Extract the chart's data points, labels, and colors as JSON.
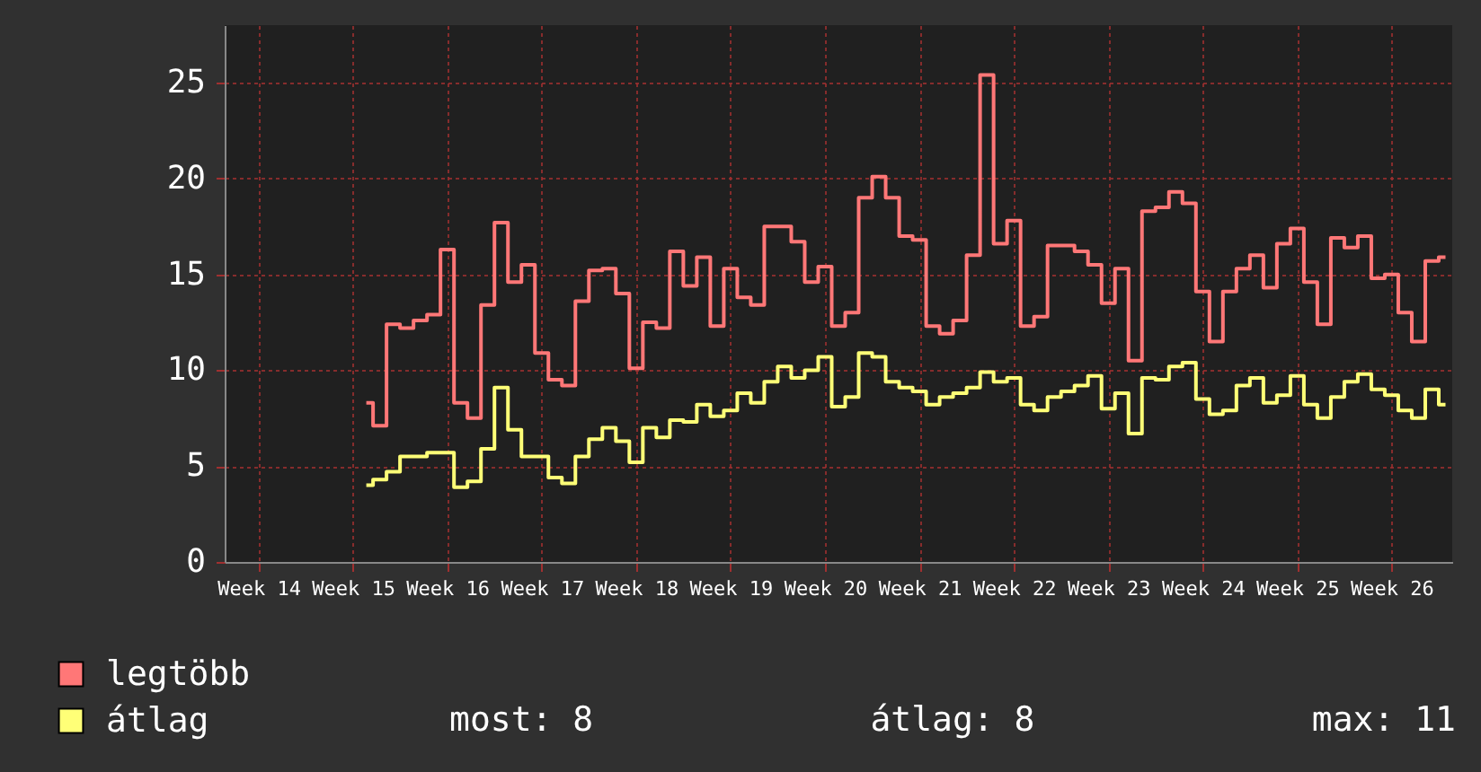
{
  "chart_data": {
    "type": "step",
    "categories": [
      null,
      null,
      "Week 14",
      null,
      null,
      null,
      null,
      null,
      null,
      "Week 15",
      null,
      null,
      null,
      null,
      null,
      null,
      "Week 16",
      null,
      null,
      null,
      null,
      null,
      null,
      "Week 17",
      null,
      null,
      null,
      null,
      null,
      null,
      "Week 18",
      null,
      null,
      null,
      null,
      null,
      null,
      "Week 19",
      null,
      null,
      null,
      null,
      null,
      null,
      "Week 20",
      null,
      null,
      null,
      null,
      null,
      null,
      "Week 21",
      null,
      null,
      null,
      null,
      null,
      null,
      "Week 22",
      null,
      null,
      null,
      null,
      null,
      null,
      "Week 23",
      null,
      null,
      null,
      null,
      null,
      null,
      "Week 24",
      null,
      null,
      null,
      null,
      null,
      null,
      "Week 25",
      null,
      null,
      null,
      null,
      null,
      null,
      "Week 26",
      null,
      null,
      null,
      null
    ],
    "series": [
      {
        "name": "legtöbb",
        "color": "#ff7777",
        "values": [
          null,
          null,
          null,
          null,
          null,
          null,
          null,
          null,
          null,
          null,
          8.3,
          7.1,
          12.4,
          12.2,
          12.6,
          12.9,
          16.3,
          8.3,
          7.5,
          13.4,
          17.7,
          14.6,
          15.5,
          10.9,
          9.5,
          9.2,
          13.6,
          15.2,
          15.3,
          14.0,
          10.1,
          12.5,
          12.2,
          16.2,
          14.4,
          15.9,
          12.3,
          15.3,
          13.8,
          13.4,
          17.5,
          17.5,
          16.7,
          14.6,
          15.4,
          12.3,
          13.0,
          19.0,
          20.1,
          19.0,
          17.0,
          16.8,
          12.3,
          11.9,
          12.6,
          16.0,
          25.4,
          16.6,
          17.8,
          12.3,
          12.8,
          16.5,
          16.5,
          16.2,
          15.5,
          13.5,
          15.3,
          10.5,
          18.3,
          18.5,
          19.3,
          18.7,
          14.1,
          11.5,
          14.1,
          15.3,
          16.0,
          14.3,
          16.6,
          17.4,
          14.6,
          12.4,
          16.9,
          16.4,
          17.0,
          14.8,
          15.0,
          13.0,
          11.5,
          15.7,
          15.9
        ]
      },
      {
        "name": "átlag",
        "color": "#ffff77",
        "values": [
          null,
          null,
          null,
          null,
          null,
          null,
          null,
          null,
          null,
          null,
          4.0,
          4.3,
          4.7,
          5.5,
          5.5,
          5.7,
          5.7,
          3.9,
          4.2,
          5.9,
          9.1,
          6.9,
          5.5,
          5.5,
          4.4,
          4.1,
          5.5,
          6.4,
          7.0,
          6.3,
          5.2,
          7.0,
          6.5,
          7.4,
          7.3,
          8.2,
          7.6,
          7.9,
          8.8,
          8.3,
          9.4,
          10.2,
          9.6,
          10.0,
          10.7,
          8.1,
          8.6,
          10.9,
          10.7,
          9.4,
          9.1,
          8.9,
          8.2,
          8.6,
          8.8,
          9.1,
          9.9,
          9.4,
          9.6,
          8.2,
          7.9,
          8.6,
          8.9,
          9.2,
          9.7,
          8.0,
          8.8,
          6.7,
          9.6,
          9.5,
          10.2,
          10.4,
          8.5,
          7.7,
          7.9,
          9.2,
          9.6,
          8.3,
          8.7,
          9.7,
          8.2,
          7.5,
          8.6,
          9.4,
          9.8,
          9.0,
          8.7,
          7.9,
          7.5,
          9.0,
          8.2
        ]
      }
    ],
    "ylim": [
      0,
      28
    ],
    "yticks": [
      0,
      5,
      10,
      15,
      20,
      25
    ],
    "grid": true,
    "legend": "bottom",
    "annotations": [
      "most: 8",
      "átlag: 8",
      "max: 11"
    ]
  }
}
